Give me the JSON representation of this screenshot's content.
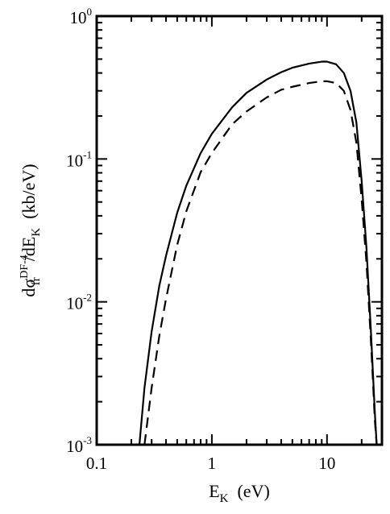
{
  "chart_data": {
    "type": "line",
    "xscale": "log",
    "yscale": "log",
    "xlim": [
      0.1,
      30
    ],
    "ylim": [
      0.001,
      1
    ],
    "xticks": [
      {
        "value": 0.1,
        "label": "0.1"
      },
      {
        "value": 1,
        "label": "1"
      },
      {
        "value": 10,
        "label": "10"
      }
    ],
    "yticks": [
      {
        "value": 1,
        "base": "10",
        "exp": "0"
      },
      {
        "value": 0.1,
        "base": "10",
        "exp": "-1"
      },
      {
        "value": 0.01,
        "base": "10",
        "exp": "-2"
      },
      {
        "value": 0.001,
        "base": "10",
        "exp": "-3"
      }
    ],
    "xlabel": {
      "main": "E",
      "sub": "K",
      "rest": "  (eV)"
    },
    "ylabel": {
      "d1": "dσ",
      "sup": "DF-4",
      "sub": "fr",
      "mid": "/dE",
      "sub2": "K",
      "rest": "  (kb/eV)"
    },
    "grid": false,
    "legend": "none",
    "series": [
      {
        "style": "solid",
        "x": [
          0.235,
          0.26,
          0.3,
          0.35,
          0.4,
          0.5,
          0.6,
          0.8,
          1.0,
          1.5,
          2.0,
          3.0,
          4.0,
          5.0,
          7.0,
          9.0,
          10.0,
          12.0,
          14.0,
          16.0,
          18.0,
          20.0,
          22.0,
          24.0,
          25.0,
          26.0,
          27.0
        ],
        "y": [
          0.001,
          0.0025,
          0.0062,
          0.013,
          0.021,
          0.042,
          0.065,
          0.11,
          0.15,
          0.23,
          0.29,
          0.36,
          0.405,
          0.435,
          0.465,
          0.48,
          0.48,
          0.46,
          0.4,
          0.3,
          0.18,
          0.07,
          0.024,
          0.0065,
          0.0033,
          0.0017,
          0.001
        ]
      },
      {
        "style": "dashed",
        "x": [
          0.26,
          0.3,
          0.35,
          0.4,
          0.5,
          0.6,
          0.8,
          1.0,
          1.5,
          2.0,
          3.0,
          4.0,
          5.0,
          7.0,
          9.0,
          10.0,
          12.0,
          14.0,
          16.0,
          18.0,
          20.0,
          22.0,
          24.0,
          25.0,
          26.0,
          27.0
        ],
        "y": [
          0.001,
          0.0025,
          0.0058,
          0.0105,
          0.025,
          0.043,
          0.081,
          0.11,
          0.175,
          0.215,
          0.27,
          0.305,
          0.32,
          0.34,
          0.35,
          0.35,
          0.34,
          0.3,
          0.22,
          0.13,
          0.052,
          0.019,
          0.0055,
          0.0029,
          0.0015,
          0.001
        ]
      }
    ]
  }
}
